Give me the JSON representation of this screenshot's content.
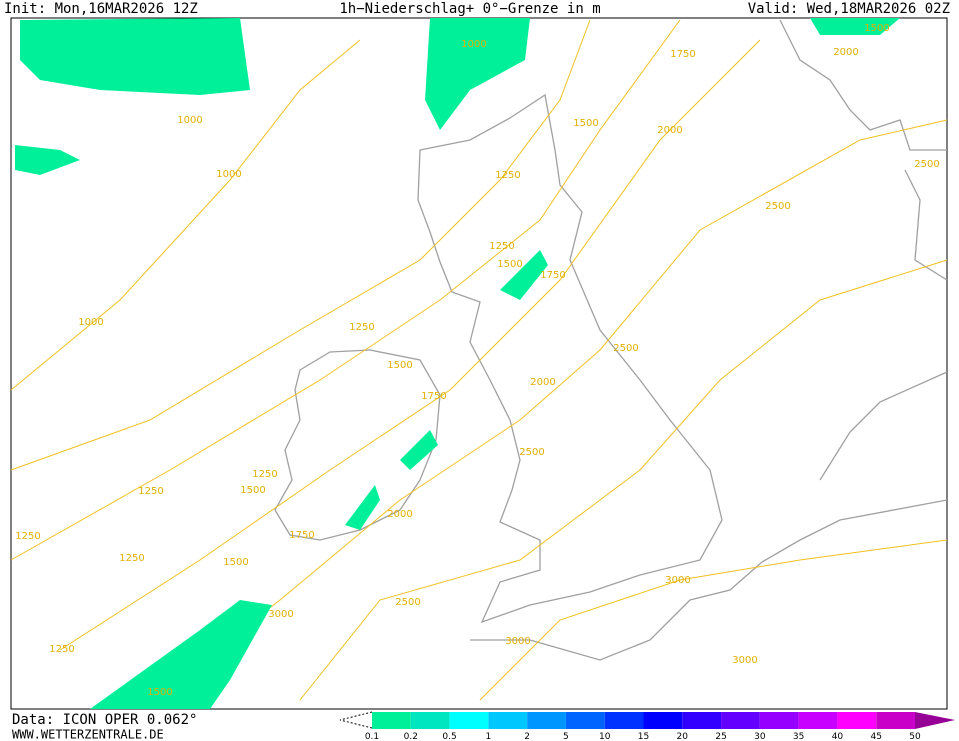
{
  "header": {
    "init": "Init: Mon,16MAR2026 12Z",
    "title": "1h−Niederschlag+ 0°−Grenze in m",
    "valid": "Valid: Wed,18MAR2026 02Z"
  },
  "footer": {
    "data": "Data: ICON OPER 0.062°",
    "site": "WWW.WETTERZENTRALE.DE"
  },
  "legend": {
    "values": [
      0.1,
      0.2,
      0.5,
      1,
      2,
      5,
      10,
      15,
      20,
      25,
      30,
      35,
      40,
      45,
      50
    ],
    "colors": [
      "#00f09a",
      "#00e6c0",
      "#00ffff",
      "#00c8ff",
      "#0096ff",
      "#0064ff",
      "#0032ff",
      "#0000ff",
      "#3200ff",
      "#6400ff",
      "#9600ff",
      "#c800ff",
      "#ff00ff",
      "#c800c8",
      "#960096"
    ]
  },
  "contour_labels": [
    1000,
    1000,
    1000,
    1000,
    1250,
    1250,
    1500,
    1750,
    1500,
    2000,
    1750,
    2000,
    1500,
    2500,
    2500,
    2500,
    2000,
    1250,
    1500,
    1750,
    2500,
    1250,
    1500,
    1250,
    1250,
    1250,
    1500,
    1750,
    2000,
    2500,
    3000,
    3000,
    3000,
    3000,
    1250,
    1500
  ]
}
